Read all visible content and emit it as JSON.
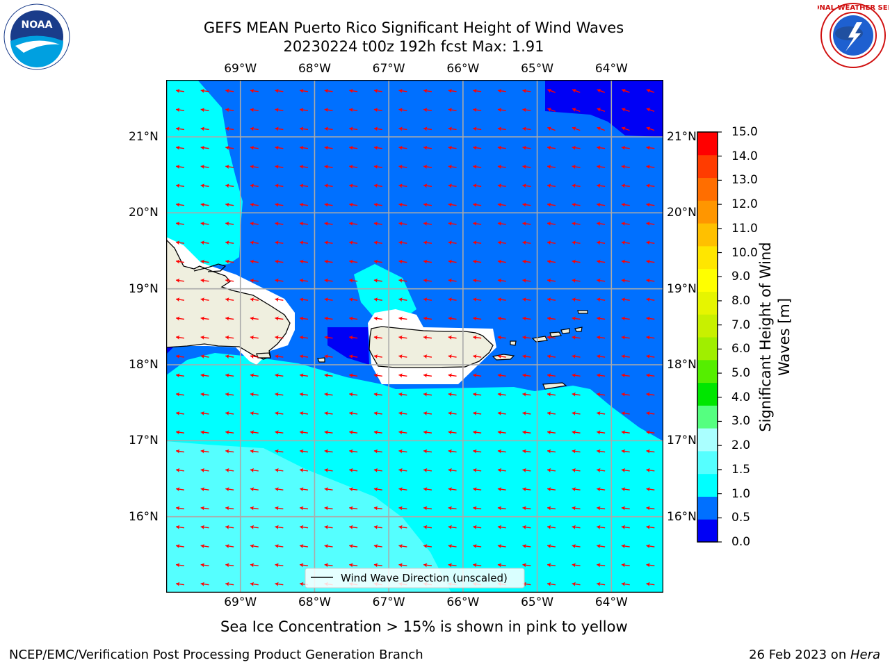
{
  "title": {
    "line1": "GEFS MEAN Puerto Rico Significant Height of Wind Waves",
    "line2": "20230224 t00z 192h fcst   Max: 1.91"
  },
  "map": {
    "lon_labels": [
      "69°W",
      "68°W",
      "67°W",
      "66°W",
      "65°W",
      "64°W"
    ],
    "lat_labels": [
      "21°N",
      "20°N",
      "19°N",
      "18°N",
      "17°N",
      "16°N"
    ],
    "lon_range": [
      -70.0,
      -63.3
    ],
    "lat_range": [
      15.0,
      21.75
    ],
    "legend_label": "Wind Wave Direction (unscaled)"
  },
  "colorbar": {
    "label_line1": "Significant Height of Wind",
    "label_line2": "Waves [m]",
    "ticks": [
      "15.0",
      "14.0",
      "13.0",
      "12.0",
      "11.0",
      "10.0",
      "9.0",
      "8.0",
      "7.0",
      "6.0",
      "5.0",
      "4.0",
      "3.0",
      "2.0",
      "1.5",
      "1.0",
      "0.5",
      "0.0"
    ],
    "colors": [
      "#0000f5",
      "#0070ff",
      "#00ffff",
      "#55ffff",
      "#aaffff",
      "#55ff80",
      "#00e600",
      "#55ee00",
      "#a0ee00",
      "#c8f000",
      "#e6f500",
      "#ffff00",
      "#ffe600",
      "#ffc000",
      "#ff9600",
      "#ff6e00",
      "#ff3c00",
      "#ff0000"
    ]
  },
  "logos": {
    "noaa_text": "NOAA",
    "nws_text": "NATIONAL WEATHER SERVICE"
  },
  "note": "Sea Ice Concentration > 15% is shown in pink to yellow",
  "footer": {
    "left": "NCEP/EMC/Verification Post Processing Product Generation Branch",
    "right_date": "26 Feb 2023 on ",
    "right_host": "Hera"
  }
}
